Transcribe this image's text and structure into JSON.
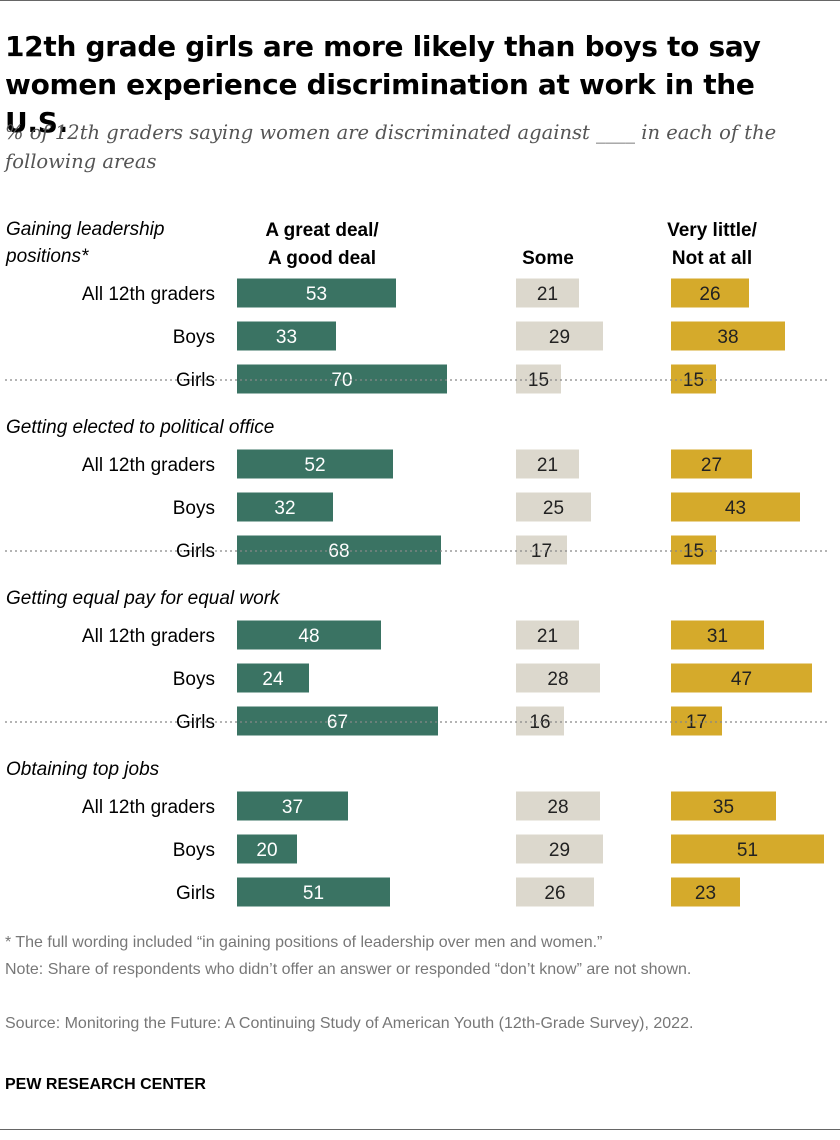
{
  "chart_data": {
    "type": "bar",
    "title": "12th grade girls are more likely than boys to say women experience discrimination at work in the U.S.",
    "subtitle": "% of 12th graders saying women are discriminated against ____ in each of the following areas",
    "column_headers": [
      "A great deal/\nA good deal",
      "Some",
      "Very little/\nNot at all"
    ],
    "row_labels": [
      "All 12th graders",
      "Boys",
      "Girls"
    ],
    "colors": [
      "#3a7363",
      "#dcd8cd",
      "#d5aa2b"
    ],
    "groups": [
      {
        "label": "Gaining leadership\npositions*",
        "values": [
          [
            53,
            21,
            26
          ],
          [
            33,
            29,
            38
          ],
          [
            70,
            15,
            15
          ]
        ]
      },
      {
        "label": "Getting elected to political office",
        "values": [
          [
            52,
            21,
            27
          ],
          [
            32,
            25,
            43
          ],
          [
            68,
            17,
            15
          ]
        ]
      },
      {
        "label": "Getting equal pay for equal work",
        "values": [
          [
            48,
            21,
            31
          ],
          [
            24,
            28,
            47
          ],
          [
            67,
            16,
            17
          ]
        ]
      },
      {
        "label": "Obtaining top jobs",
        "values": [
          [
            37,
            28,
            35
          ],
          [
            20,
            29,
            51
          ],
          [
            51,
            26,
            23
          ]
        ]
      }
    ]
  },
  "footnotes": {
    "asterisk": "* The full wording included “in gaining positions of leadership over men and women.”",
    "note": "Note: Share of respondents who didn’t offer an answer or responded “don’t know” are not shown.",
    "source": "Source: Monitoring the Future: A Continuing Study of American Youth (12th-Grade Survey), 2022."
  },
  "brand": "PEW RESEARCH CENTER"
}
